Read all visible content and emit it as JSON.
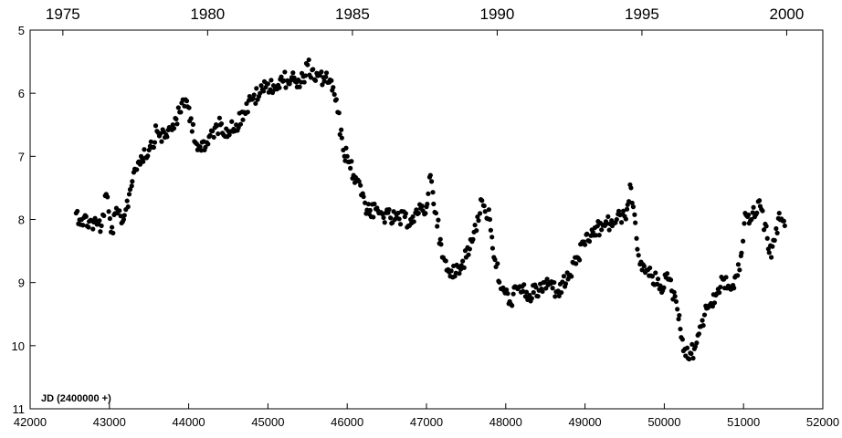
{
  "chart_data": {
    "type": "scatter",
    "title": "",
    "xlabel": "",
    "ylabel": "",
    "annotation": "JD (2400000 +)",
    "xlim": [
      42000,
      52000
    ],
    "ylim": [
      11,
      5
    ],
    "y_inverted": true,
    "grid": false,
    "marker_color": "#000000",
    "x_ticks": [
      42000,
      43000,
      44000,
      45000,
      46000,
      47000,
      48000,
      49000,
      50000,
      51000,
      52000
    ],
    "y_ticks": [
      5,
      6,
      7,
      8,
      9,
      10,
      11
    ],
    "top_axis": {
      "label": "",
      "ticks": [
        {
          "label": "1975",
          "jd": 42413
        },
        {
          "label": "1980",
          "jd": 44239
        },
        {
          "label": "1985",
          "jd": 46066
        },
        {
          "label": "1990",
          "jd": 47892
        },
        {
          "label": "1995",
          "jd": 49718
        },
        {
          "label": "2000",
          "jd": 51544
        }
      ]
    },
    "series": [
      {
        "marker": "circle",
        "trend_points": [
          [
            42580,
            7.9
          ],
          [
            42650,
            8.0
          ],
          [
            42900,
            8.1
          ],
          [
            42960,
            7.6
          ],
          [
            43020,
            8.2
          ],
          [
            43100,
            7.9
          ],
          [
            43180,
            8.0
          ],
          [
            43250,
            7.6
          ],
          [
            43320,
            7.2
          ],
          [
            43400,
            7.0
          ],
          [
            43500,
            6.9
          ],
          [
            43600,
            6.6
          ],
          [
            43700,
            6.7
          ],
          [
            43800,
            6.5
          ],
          [
            43900,
            6.3
          ],
          [
            43960,
            6.1
          ],
          [
            44030,
            6.4
          ],
          [
            44100,
            6.8
          ],
          [
            44200,
            6.9
          ],
          [
            44300,
            6.6
          ],
          [
            44400,
            6.5
          ],
          [
            44500,
            6.6
          ],
          [
            44600,
            6.5
          ],
          [
            44700,
            6.3
          ],
          [
            44800,
            6.1
          ],
          [
            44900,
            6.0
          ],
          [
            45000,
            5.85
          ],
          [
            45100,
            5.9
          ],
          [
            45200,
            5.8
          ],
          [
            45300,
            5.75
          ],
          [
            45400,
            5.9
          ],
          [
            45500,
            5.55
          ],
          [
            45600,
            5.8
          ],
          [
            45700,
            5.75
          ],
          [
            45800,
            5.8
          ],
          [
            45880,
            6.3
          ],
          [
            45950,
            6.9
          ],
          [
            46000,
            7.0
          ],
          [
            46080,
            7.3
          ],
          [
            46150,
            7.4
          ],
          [
            46250,
            7.85
          ],
          [
            46400,
            7.9
          ],
          [
            46600,
            8.0
          ],
          [
            46800,
            8.0
          ],
          [
            46900,
            7.9
          ],
          [
            47000,
            7.8
          ],
          [
            47050,
            7.3
          ],
          [
            47120,
            7.9
          ],
          [
            47200,
            8.6
          ],
          [
            47300,
            8.9
          ],
          [
            47400,
            8.75
          ],
          [
            47500,
            8.6
          ],
          [
            47600,
            8.2
          ],
          [
            47700,
            7.7
          ],
          [
            47800,
            8.0
          ],
          [
            47850,
            8.6
          ],
          [
            47950,
            9.1
          ],
          [
            48050,
            9.3
          ],
          [
            48150,
            9.1
          ],
          [
            48300,
            9.2
          ],
          [
            48450,
            9.1
          ],
          [
            48550,
            9.0
          ],
          [
            48650,
            9.15
          ],
          [
            48800,
            8.9
          ],
          [
            48900,
            8.6
          ],
          [
            49000,
            8.4
          ],
          [
            49100,
            8.2
          ],
          [
            49250,
            8.1
          ],
          [
            49400,
            8.0
          ],
          [
            49500,
            7.95
          ],
          [
            49580,
            7.5
          ],
          [
            49650,
            8.3
          ],
          [
            49720,
            8.8
          ],
          [
            49850,
            8.9
          ],
          [
            49950,
            9.05
          ],
          [
            50050,
            8.95
          ],
          [
            50150,
            9.3
          ],
          [
            50230,
            9.9
          ],
          [
            50300,
            10.2
          ],
          [
            50380,
            10.05
          ],
          [
            50450,
            9.7
          ],
          [
            50550,
            9.4
          ],
          [
            50650,
            9.2
          ],
          [
            50750,
            8.95
          ],
          [
            50850,
            9.1
          ],
          [
            50950,
            8.8
          ],
          [
            51020,
            7.9
          ],
          [
            51100,
            8.0
          ],
          [
            51200,
            7.7
          ],
          [
            51300,
            8.3
          ],
          [
            51350,
            8.6
          ],
          [
            51450,
            7.9
          ],
          [
            51520,
            8.1
          ]
        ]
      }
    ]
  }
}
